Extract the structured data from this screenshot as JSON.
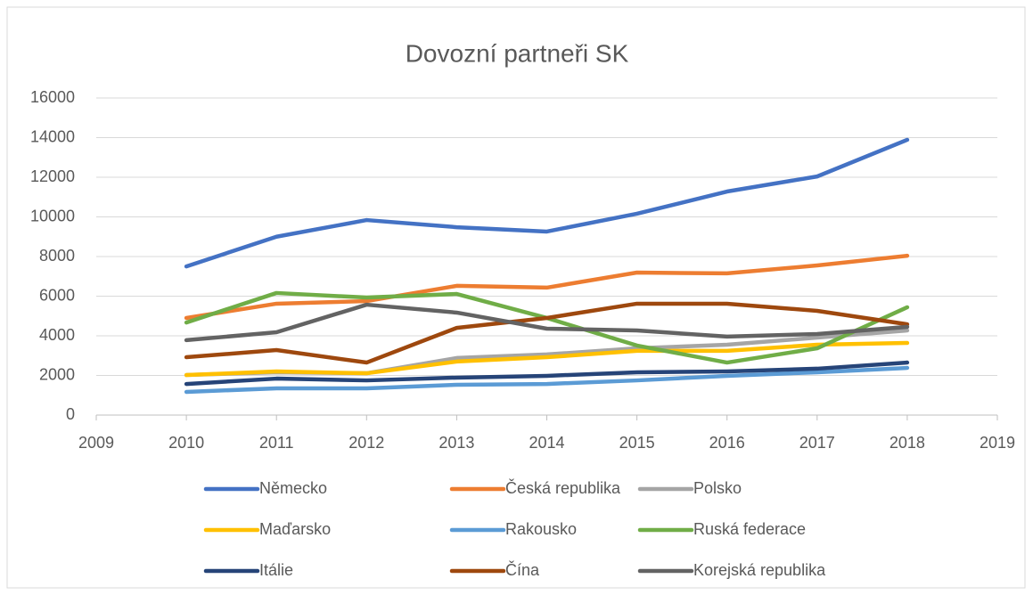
{
  "chart_data": {
    "type": "line",
    "title": "Dovozní partneři SK",
    "x": [
      2010,
      2011,
      2012,
      2013,
      2014,
      2015,
      2016,
      2017,
      2018
    ],
    "xlim": [
      2009,
      2019
    ],
    "xticks": [
      2009,
      2010,
      2011,
      2012,
      2013,
      2014,
      2015,
      2016,
      2017,
      2018,
      2019
    ],
    "ylim": [
      0,
      16000
    ],
    "yticks": [
      0,
      2000,
      4000,
      6000,
      8000,
      10000,
      12000,
      14000,
      16000
    ],
    "grid": true,
    "legend": "bottom",
    "series": [
      {
        "name": "Německo",
        "color": "#4472c4",
        "values": [
          7500,
          9000,
          9840,
          9480,
          9260,
          10160,
          11280,
          12040,
          13890
        ]
      },
      {
        "name": "Česká republika",
        "color": "#ed7d31",
        "values": [
          4900,
          5620,
          5750,
          6520,
          6430,
          7190,
          7150,
          7550,
          8040
        ]
      },
      {
        "name": "Polsko",
        "color": "#a5a5a5",
        "values": [
          2020,
          2160,
          2110,
          2880,
          3060,
          3370,
          3550,
          3910,
          4270
        ]
      },
      {
        "name": "Maďarsko",
        "color": "#ffc000",
        "values": [
          2020,
          2200,
          2110,
          2700,
          2920,
          3240,
          3240,
          3550,
          3640
        ]
      },
      {
        "name": "Rakousko",
        "color": "#5b9bd5",
        "values": [
          1170,
          1350,
          1350,
          1530,
          1570,
          1750,
          1980,
          2160,
          2380
        ]
      },
      {
        "name": "Ruská federace",
        "color": "#70ad47",
        "values": [
          4670,
          6160,
          5930,
          6110,
          4900,
          3510,
          2650,
          3370,
          5440
        ]
      },
      {
        "name": "Itálie",
        "color": "#264478",
        "values": [
          1570,
          1840,
          1750,
          1890,
          1980,
          2160,
          2200,
          2340,
          2650
        ]
      },
      {
        "name": "Čína",
        "color": "#9e480e",
        "values": [
          2920,
          3280,
          2650,
          4400,
          4900,
          5620,
          5620,
          5260,
          4580
        ]
      },
      {
        "name": "Korejská republika",
        "color": "#636363",
        "values": [
          3780,
          4180,
          5570,
          5170,
          4360,
          4270,
          3960,
          4090,
          4450
        ]
      }
    ]
  }
}
